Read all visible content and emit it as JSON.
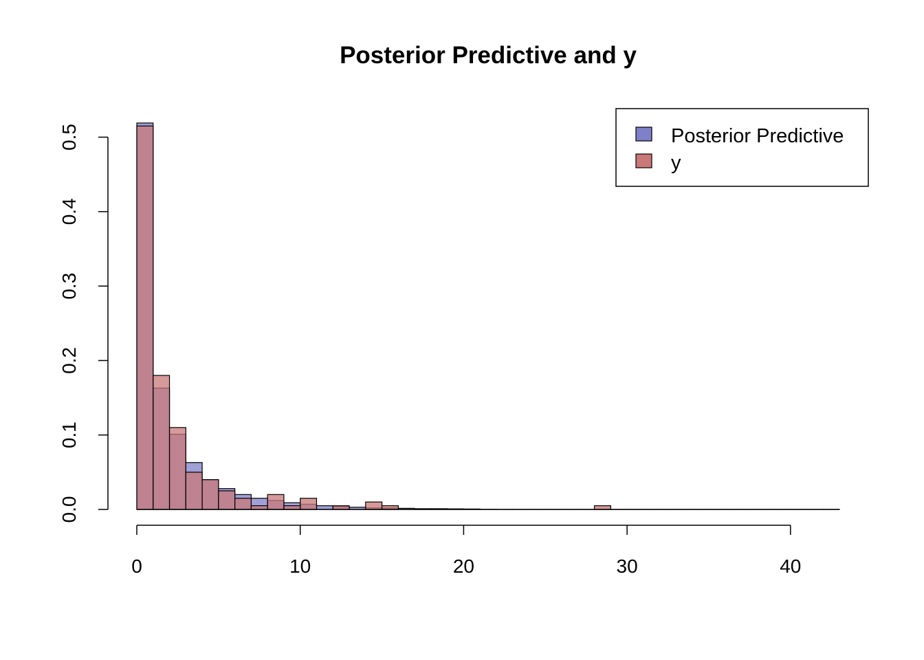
{
  "chart_data": {
    "type": "bar",
    "title": "Posterior Predictive and y",
    "xlabel": "",
    "ylabel": "",
    "xlim": [
      0,
      43
    ],
    "ylim": [
      0,
      0.5
    ],
    "bin_width": 1,
    "x_ticks": [
      0,
      10,
      20,
      30,
      40
    ],
    "x_tick_labels": [
      "0",
      "10",
      "20",
      "30",
      "40"
    ],
    "y_ticks": [
      0,
      0.1,
      0.2,
      0.3,
      0.4,
      0.5
    ],
    "y_tick_labels": [
      "0.0",
      "0.1",
      "0.2",
      "0.3",
      "0.4",
      "0.5"
    ],
    "legend_position": "top-right",
    "series": [
      {
        "name": "Posterior Predictive",
        "color": "#8080c8",
        "bin_start": 0,
        "values": [
          0.519,
          0.163,
          0.101,
          0.063,
          0.04,
          0.028,
          0.02,
          0.015,
          0.012,
          0.009,
          0.007,
          0.005,
          0.004,
          0.003,
          0.002,
          0.002,
          0.0015,
          0.001,
          0.001,
          0.0008,
          0.0006,
          0.0002,
          0.0001,
          0.0001,
          0.0001,
          0.0001,
          0.0001,
          0.0001,
          0.0001,
          0.0001,
          0.0001,
          0.0001,
          0.0001,
          0.0001,
          0.0001,
          0.0001,
          0.0001,
          0.0001,
          0.0001,
          0.0001,
          0.0001,
          0.0001,
          0.0001
        ]
      },
      {
        "name": "y",
        "color": "#c87878",
        "bin_start": 0,
        "values": [
          0.515,
          0.18,
          0.11,
          0.05,
          0.04,
          0.025,
          0.015,
          0.005,
          0.02,
          0.005,
          0.015,
          0.0,
          0.005,
          0.0,
          0.01,
          0.005,
          0.0,
          0.0,
          0.0,
          0.0,
          0.0,
          0.0,
          0.0,
          0.0,
          0.0,
          0.0,
          0.0,
          0.0,
          0.005,
          0.0,
          0.0,
          0.0,
          0.0,
          0.0,
          0.0,
          0.0,
          0.0,
          0.0,
          0.0,
          0.0,
          0.0,
          0.0,
          0.0
        ]
      }
    ]
  }
}
